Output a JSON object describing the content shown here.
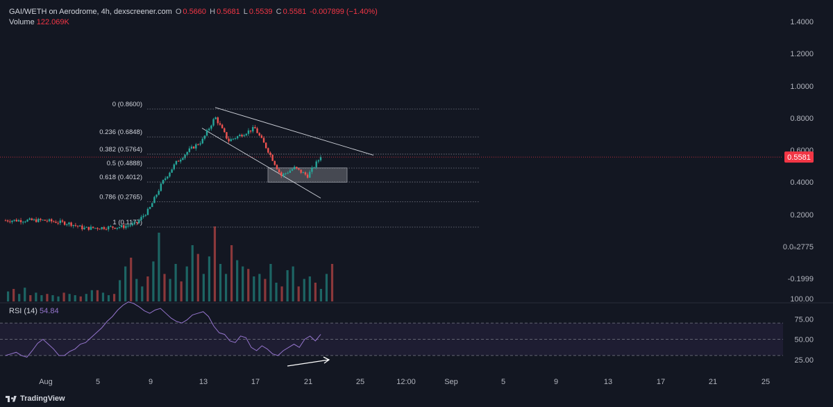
{
  "header": {
    "symbol": "GAI/WETH on Aerodrome, 4h, dexscreener.com",
    "o_label": "O",
    "o_value": "0.5660",
    "h_label": "H",
    "h_value": "0.5681",
    "l_label": "L",
    "l_value": "0.5539",
    "c_label": "C",
    "c_value": "0.5581",
    "change": "-0.007899 (−1.40%)"
  },
  "volume": {
    "label": "Volume",
    "value": "122.069K"
  },
  "rsi": {
    "label": "RSI (14)",
    "value": "54.84"
  },
  "brand": "TradingView",
  "colors": {
    "bg": "#131722",
    "up": "#26a69a",
    "down": "#ef5350",
    "rsi": "#9575cd",
    "price_tag": "#f23645"
  },
  "chart_data": [
    {
      "type": "candlestick",
      "price_axis": {
        "ticks": [
          "1.4000",
          "1.2000",
          "1.0000",
          "0.8000",
          "0.6000",
          "0.4000",
          "0.2000",
          "0.0ₙ2775",
          "-0.1999"
        ],
        "current": "0.5581"
      },
      "x_axis": {
        "ticks": [
          "Aug",
          "5",
          "9",
          "13",
          "17",
          "21",
          "25",
          "12:00",
          "Sep",
          "5",
          "9",
          "13",
          "17",
          "21",
          "25"
        ]
      },
      "fibonacci": [
        {
          "label": "0 (0.8600)",
          "value": 0.86
        },
        {
          "label": "0.236 (0.6848)",
          "value": 0.6848
        },
        {
          "label": "0.382 (0.5764)",
          "value": 0.5764
        },
        {
          "label": "0.5 (0.4888)",
          "value": 0.4888
        },
        {
          "label": "0.618 (0.4012)",
          "value": 0.4012
        },
        {
          "label": "0.786 (0.2765)",
          "value": 0.2765
        },
        {
          "label": "1 (0.1177)",
          "value": 0.1177
        }
      ],
      "close_path": [
        {
          "t": "Aug 1",
          "v": 0.16
        },
        {
          "t": "Aug 3",
          "v": 0.14
        },
        {
          "t": "Aug 4",
          "v": 0.11
        },
        {
          "t": "Aug 7",
          "v": 0.12
        },
        {
          "t": "Aug 8",
          "v": 0.14
        },
        {
          "t": "Aug 9",
          "v": 0.23
        },
        {
          "t": "Aug 10",
          "v": 0.4
        },
        {
          "t": "Aug 11",
          "v": 0.52
        },
        {
          "t": "Aug 12",
          "v": 0.6
        },
        {
          "t": "Aug 13",
          "v": 0.66
        },
        {
          "t": "Aug 14",
          "v": 0.81
        },
        {
          "t": "Aug 15",
          "v": 0.66
        },
        {
          "t": "Aug 17",
          "v": 0.74
        },
        {
          "t": "Aug 18",
          "v": 0.6
        },
        {
          "t": "Aug 19",
          "v": 0.44
        },
        {
          "t": "Aug 20",
          "v": 0.49
        },
        {
          "t": "Aug 21",
          "v": 0.44
        },
        {
          "t": "Aug 22",
          "v": 0.56
        }
      ],
      "trend_lines": [
        {
          "from": {
            "t": "Aug 14",
            "v": 0.87
          },
          "to": {
            "t": "Aug 26",
            "v": 0.57
          }
        },
        {
          "from": {
            "t": "Aug 13",
            "v": 0.74
          },
          "to": {
            "t": "Aug 22",
            "v": 0.3
          }
        }
      ],
      "zone": {
        "from": "Aug 18",
        "to": "Aug 24",
        "top": 0.49,
        "bottom": 0.4
      }
    },
    {
      "type": "bar",
      "name": "Volume",
      "last_value": "122.069K",
      "values": [
        0.08,
        0.1,
        0.06,
        0.11,
        0.05,
        0.07,
        0.05,
        0.06,
        0.05,
        0.04,
        0.07,
        0.06,
        0.05,
        0.04,
        0.06,
        0.09,
        0.09,
        0.07,
        0.05,
        0.06,
        0.17,
        0.28,
        0.35,
        0.18,
        0.12,
        0.2,
        0.32,
        0.55,
        0.22,
        0.18,
        0.3,
        0.16,
        0.28,
        0.45,
        0.38,
        0.22,
        0.36,
        0.6,
        0.3,
        0.22,
        0.45,
        0.33,
        0.28,
        0.26,
        0.2,
        0.22,
        0.18,
        0.3,
        0.15,
        0.12,
        0.25,
        0.28,
        0.12,
        0.18,
        0.2,
        0.15,
        0.1,
        0.22,
        0.3
      ]
    },
    {
      "type": "line",
      "name": "RSI (14)",
      "y_ticks": [
        "100.00",
        "75.00",
        "50.00",
        "25.00"
      ],
      "bands": [
        30,
        50,
        70
      ],
      "values": [
        30,
        32,
        34,
        30,
        28,
        36,
        45,
        50,
        44,
        38,
        30,
        30,
        35,
        38,
        44,
        46,
        52,
        58,
        64,
        72,
        78,
        86,
        92,
        96,
        94,
        90,
        85,
        82,
        86,
        88,
        82,
        76,
        72,
        70,
        74,
        80,
        82,
        84,
        78,
        66,
        58,
        56,
        48,
        46,
        54,
        52,
        40,
        36,
        42,
        38,
        32,
        30,
        36,
        40,
        44,
        40,
        50,
        54,
        48,
        56
      ]
    }
  ]
}
